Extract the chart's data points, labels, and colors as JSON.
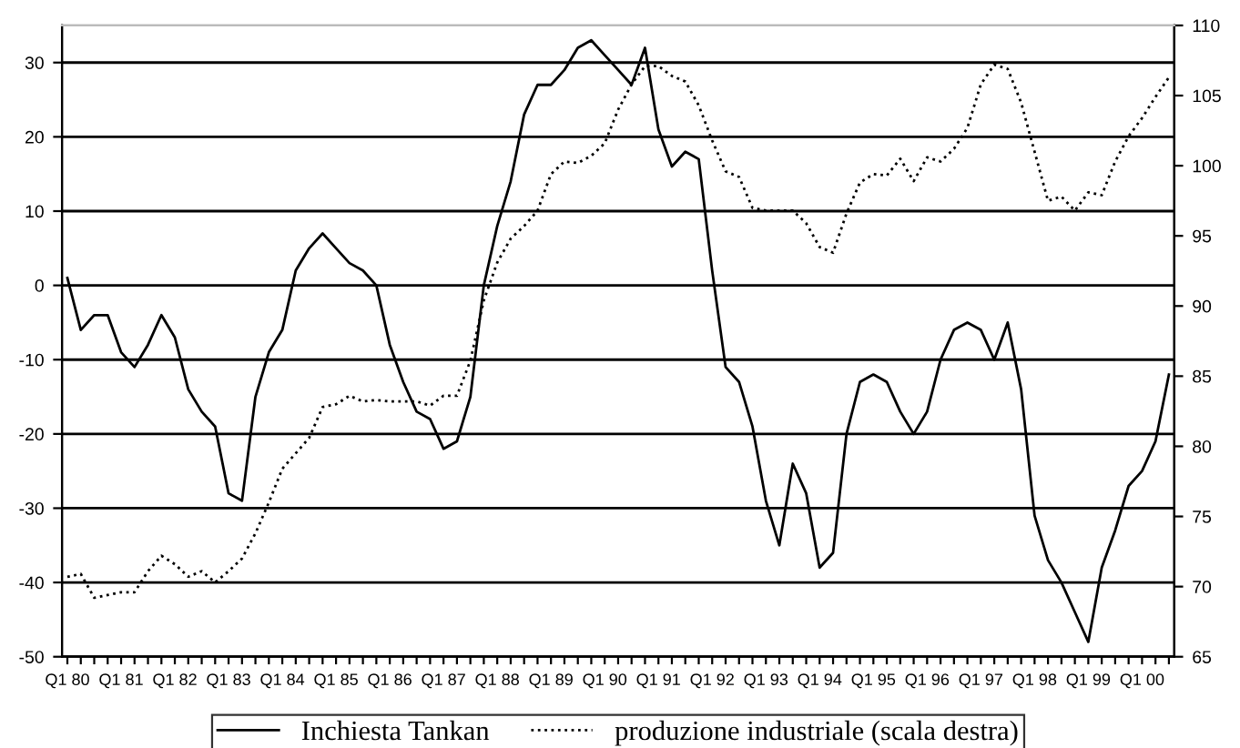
{
  "chart_data": {
    "type": "line",
    "categories": [
      "Q1 80",
      null,
      null,
      null,
      "Q1 81",
      null,
      null,
      null,
      "Q1 82",
      null,
      null,
      null,
      "Q1 83",
      null,
      null,
      null,
      "Q1 84",
      null,
      null,
      null,
      "Q1 85",
      null,
      null,
      null,
      "Q1 86",
      null,
      null,
      null,
      "Q1 87",
      null,
      null,
      null,
      "Q1 88",
      null,
      null,
      null,
      "Q1 89",
      null,
      null,
      null,
      "Q1 90",
      null,
      null,
      null,
      "Q1 91",
      null,
      null,
      null,
      "Q1 92",
      null,
      null,
      null,
      "Q1 93",
      null,
      null,
      null,
      "Q1 94",
      null,
      null,
      null,
      "Q1 95",
      null,
      null,
      null,
      "Q1 96",
      null,
      null,
      null,
      "Q1 97",
      null,
      null,
      null,
      "Q1 98",
      null,
      null,
      null,
      "Q1 99",
      null,
      null,
      null,
      "Q1 00",
      null,
      null
    ],
    "series": [
      {
        "name": "Inchiesta Tankan",
        "color": "#000000",
        "axis": "y",
        "line_style": "solid",
        "values": [
          1,
          -6,
          -4,
          -4,
          -9,
          -11,
          -8,
          -4,
          -7,
          -14,
          -17,
          -19,
          -28,
          -29,
          -15,
          -9,
          -6,
          2,
          5,
          7,
          5,
          3,
          2,
          0,
          -8,
          -13,
          -17,
          -18,
          -22,
          -21,
          -15,
          0,
          8,
          14,
          23,
          27,
          27,
          29,
          32,
          33,
          31,
          29,
          27,
          32,
          21,
          16,
          18,
          17,
          2,
          -11,
          -13,
          -19,
          -29,
          -35,
          -24,
          -28,
          -38,
          -36,
          -20,
          -13,
          -12,
          -13,
          -17,
          -20,
          -17,
          -10,
          -6,
          -5,
          -6,
          -10,
          -5,
          -14,
          -31,
          -37,
          -40,
          -44,
          -48,
          -38,
          -33,
          -27,
          -25,
          -21,
          -12
        ]
      },
      {
        "name": "produzione industriale (scala destra)",
        "color": "#000000",
        "axis": "y2",
        "line_style": "dotted",
        "values": [
          70.7,
          70.9,
          69.2,
          69.4,
          69.6,
          69.6,
          71.1,
          72.2,
          71.6,
          70.7,
          71.1,
          70.3,
          71.1,
          72.0,
          73.8,
          76.0,
          78.4,
          79.5,
          80.6,
          82.8,
          83.0,
          83.6,
          83.2,
          83.3,
          83.2,
          83.2,
          83.2,
          82.9,
          83.6,
          83.6,
          86.1,
          90.4,
          93.1,
          94.8,
          95.7,
          96.8,
          99.4,
          100.3,
          100.2,
          100.7,
          101.6,
          104.0,
          105.8,
          107.1,
          107.1,
          106.4,
          106.0,
          104.3,
          101.8,
          99.6,
          99.2,
          97.0,
          96.8,
          96.8,
          96.8,
          95.9,
          94.2,
          93.8,
          96.6,
          98.8,
          99.4,
          99.3,
          100.5,
          98.9,
          100.6,
          100.3,
          101.2,
          102.7,
          105.8,
          107.2,
          106.9,
          104.5,
          101.0,
          97.5,
          97.8,
          96.8,
          98.1,
          97.9,
          100.3,
          102.1,
          103.4,
          104.9,
          106.3
        ]
      }
    ],
    "ylim": [
      -50,
      35
    ],
    "yticks": [
      -50,
      -40,
      -30,
      -20,
      -10,
      0,
      10,
      20,
      30
    ],
    "y2lim": [
      65,
      110
    ],
    "y2ticks": [
      65,
      70,
      75,
      80,
      85,
      90,
      95,
      100,
      105,
      110
    ],
    "grid": "y",
    "legend": "bottom"
  }
}
